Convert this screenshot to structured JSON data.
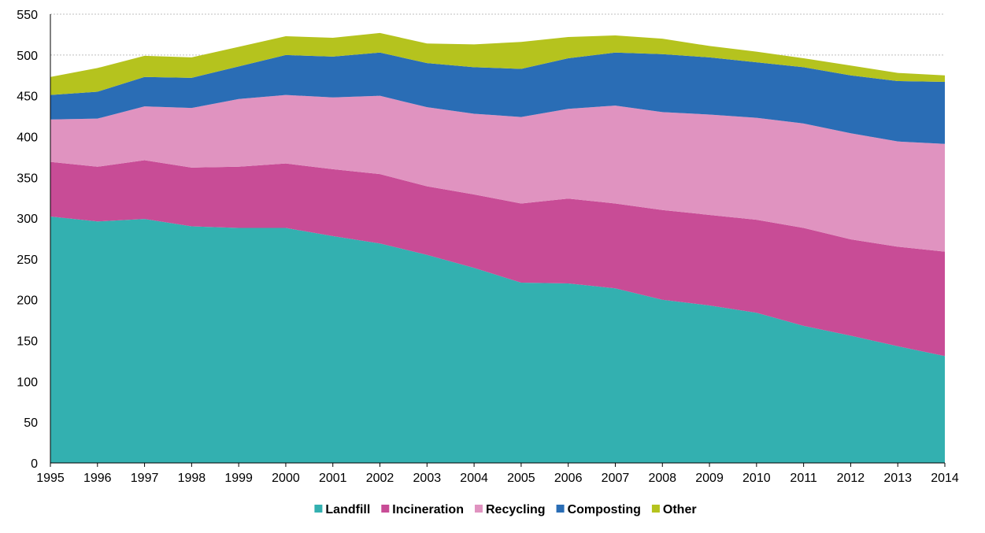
{
  "chart_data": {
    "type": "area",
    "stacked": true,
    "title": "",
    "xlabel": "",
    "ylabel": "",
    "ylim": [
      0,
      550
    ],
    "ytick_step": 50,
    "grid": "horizontal dashed",
    "legend_position": "bottom-center",
    "x": [
      "1995",
      "1996",
      "1997",
      "1998",
      "1999",
      "2000",
      "2001",
      "2002",
      "2003",
      "2004",
      "2005",
      "2006",
      "2007",
      "2008",
      "2009",
      "2010",
      "2011",
      "2012",
      "2013",
      "2014"
    ],
    "series": [
      {
        "name": "Landfill",
        "color": "#33b0b0",
        "values": [
          302,
          296,
          299,
          290,
          288,
          288,
          278,
          269,
          255,
          239,
          221,
          220,
          214,
          200,
          193,
          184,
          168,
          156,
          143,
          131
        ]
      },
      {
        "name": "Incineration",
        "color": "#c84c96",
        "values": [
          67,
          67,
          72,
          72,
          75,
          79,
          82,
          85,
          84,
          90,
          97,
          104,
          104,
          110,
          111,
          114,
          120,
          118,
          122,
          128
        ]
      },
      {
        "name": "Recycling",
        "color": "#e093c0",
        "values": [
          52,
          59,
          66,
          73,
          83,
          84,
          88,
          96,
          97,
          99,
          106,
          110,
          120,
          120,
          123,
          125,
          128,
          130,
          129,
          132
        ]
      },
      {
        "name": "Composting",
        "color": "#2a6db5",
        "values": [
          30,
          33,
          36,
          37,
          40,
          49,
          50,
          53,
          54,
          57,
          59,
          62,
          65,
          71,
          70,
          68,
          69,
          71,
          74,
          76
        ]
      },
      {
        "name": "Other",
        "color": "#b5c31e",
        "values": [
          22,
          29,
          26,
          25,
          24,
          23,
          23,
          24,
          24,
          28,
          33,
          26,
          21,
          19,
          14,
          13,
          11,
          12,
          10,
          8
        ]
      }
    ]
  }
}
